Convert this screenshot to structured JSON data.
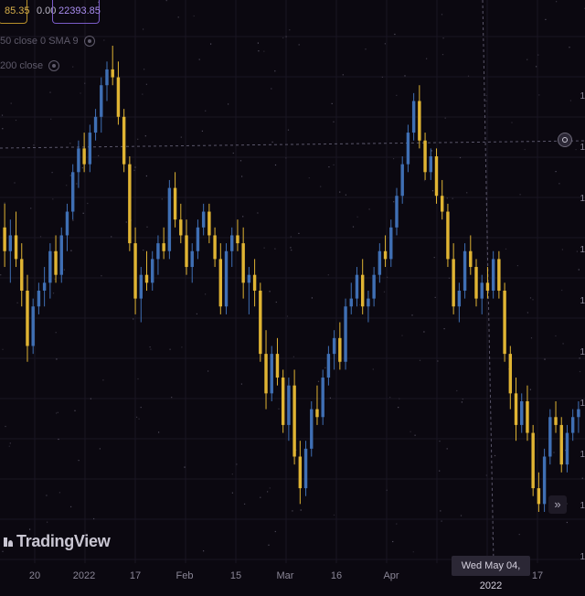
{
  "header": {
    "price_value": "85.35",
    "change_value": "0.00",
    "volume_value": "22393.85"
  },
  "indicators": [
    {
      "label": "50 close 0 SMA 9",
      "icon": "eye-icon"
    },
    {
      "label": "200 close",
      "icon": "eye-icon"
    }
  ],
  "branding": {
    "logo_text": "TradingView"
  },
  "x_axis": {
    "ticks": [
      {
        "label": "20"
      },
      {
        "label": "2022"
      },
      {
        "label": "17"
      },
      {
        "label": "Feb"
      },
      {
        "label": "15"
      },
      {
        "label": "Mar"
      },
      {
        "label": "16"
      },
      {
        "label": "Apr"
      },
      {
        "label": "17"
      }
    ],
    "cursor_date": "Wed May 04, 2022"
  },
  "y_axis": {
    "ticks": [
      "1",
      "1",
      "1",
      "1",
      "1",
      "1",
      "1",
      "1",
      "1",
      "1"
    ]
  },
  "controls": {
    "scroll_to_latest": "»",
    "target_icon": "target-icon"
  },
  "colors": {
    "up": "#3f6fb4",
    "down": "#e0b433",
    "background": "#0b0810",
    "grid": "#1a1622",
    "crosshair": "#5a566a"
  },
  "chart_data": {
    "type": "candlestick",
    "title": "",
    "candles": [
      {
        "o": 95,
        "h": 98,
        "l": 90,
        "c": 92
      },
      {
        "o": 92,
        "h": 96,
        "l": 88,
        "c": 94
      },
      {
        "o": 94,
        "h": 97,
        "l": 90,
        "c": 91
      },
      {
        "o": 91,
        "h": 93,
        "l": 85,
        "c": 87
      },
      {
        "o": 87,
        "h": 89,
        "l": 78,
        "c": 80
      },
      {
        "o": 80,
        "h": 86,
        "l": 79,
        "c": 85
      },
      {
        "o": 85,
        "h": 88,
        "l": 84,
        "c": 87
      },
      {
        "o": 87,
        "h": 90,
        "l": 85,
        "c": 88
      },
      {
        "o": 88,
        "h": 93,
        "l": 86,
        "c": 92
      },
      {
        "o": 92,
        "h": 94,
        "l": 88,
        "c": 89
      },
      {
        "o": 89,
        "h": 95,
        "l": 88,
        "c": 94
      },
      {
        "o": 94,
        "h": 98,
        "l": 92,
        "c": 97
      },
      {
        "o": 97,
        "h": 103,
        "l": 96,
        "c": 102
      },
      {
        "o": 102,
        "h": 106,
        "l": 100,
        "c": 105
      },
      {
        "o": 105,
        "h": 107,
        "l": 102,
        "c": 103
      },
      {
        "o": 103,
        "h": 108,
        "l": 102,
        "c": 107
      },
      {
        "o": 107,
        "h": 110,
        "l": 106,
        "c": 109
      },
      {
        "o": 109,
        "h": 114,
        "l": 107,
        "c": 113
      },
      {
        "o": 113,
        "h": 116,
        "l": 111,
        "c": 115
      },
      {
        "o": 115,
        "h": 118,
        "l": 113,
        "c": 114
      },
      {
        "o": 114,
        "h": 116,
        "l": 108,
        "c": 109
      },
      {
        "o": 109,
        "h": 110,
        "l": 102,
        "c": 103
      },
      {
        "o": 103,
        "h": 104,
        "l": 92,
        "c": 93
      },
      {
        "o": 93,
        "h": 95,
        "l": 84,
        "c": 86
      },
      {
        "o": 86,
        "h": 90,
        "l": 83,
        "c": 89
      },
      {
        "o": 89,
        "h": 92,
        "l": 87,
        "c": 88
      },
      {
        "o": 88,
        "h": 92,
        "l": 87,
        "c": 91
      },
      {
        "o": 91,
        "h": 94,
        "l": 89,
        "c": 93
      },
      {
        "o": 93,
        "h": 95,
        "l": 91,
        "c": 92
      },
      {
        "o": 92,
        "h": 101,
        "l": 91,
        "c": 100
      },
      {
        "o": 100,
        "h": 102,
        "l": 95,
        "c": 96
      },
      {
        "o": 96,
        "h": 98,
        "l": 93,
        "c": 94
      },
      {
        "o": 94,
        "h": 96,
        "l": 89,
        "c": 90
      },
      {
        "o": 90,
        "h": 93,
        "l": 88,
        "c": 92
      },
      {
        "o": 92,
        "h": 96,
        "l": 91,
        "c": 95
      },
      {
        "o": 95,
        "h": 98,
        "l": 94,
        "c": 97
      },
      {
        "o": 97,
        "h": 98,
        "l": 93,
        "c": 94
      },
      {
        "o": 94,
        "h": 95,
        "l": 90,
        "c": 91
      },
      {
        "o": 91,
        "h": 93,
        "l": 84,
        "c": 85
      },
      {
        "o": 85,
        "h": 93,
        "l": 84,
        "c": 92
      },
      {
        "o": 92,
        "h": 95,
        "l": 90,
        "c": 94
      },
      {
        "o": 94,
        "h": 96,
        "l": 92,
        "c": 93
      },
      {
        "o": 93,
        "h": 95,
        "l": 86,
        "c": 88
      },
      {
        "o": 88,
        "h": 90,
        "l": 84,
        "c": 89
      },
      {
        "o": 89,
        "h": 91,
        "l": 85,
        "c": 87
      },
      {
        "o": 87,
        "h": 88,
        "l": 78,
        "c": 79
      },
      {
        "o": 79,
        "h": 82,
        "l": 72,
        "c": 74
      },
      {
        "o": 74,
        "h": 80,
        "l": 73,
        "c": 79
      },
      {
        "o": 79,
        "h": 81,
        "l": 75,
        "c": 76
      },
      {
        "o": 76,
        "h": 77,
        "l": 69,
        "c": 70
      },
      {
        "o": 70,
        "h": 76,
        "l": 68,
        "c": 75
      },
      {
        "o": 75,
        "h": 77,
        "l": 65,
        "c": 66
      },
      {
        "o": 66,
        "h": 68,
        "l": 60,
        "c": 62
      },
      {
        "o": 62,
        "h": 68,
        "l": 61,
        "c": 67
      },
      {
        "o": 67,
        "h": 73,
        "l": 66,
        "c": 72
      },
      {
        "o": 72,
        "h": 75,
        "l": 70,
        "c": 71
      },
      {
        "o": 71,
        "h": 77,
        "l": 70,
        "c": 76
      },
      {
        "o": 76,
        "h": 80,
        "l": 75,
        "c": 79
      },
      {
        "o": 79,
        "h": 82,
        "l": 77,
        "c": 81
      },
      {
        "o": 81,
        "h": 83,
        "l": 77,
        "c": 78
      },
      {
        "o": 78,
        "h": 86,
        "l": 77,
        "c": 85
      },
      {
        "o": 85,
        "h": 88,
        "l": 84,
        "c": 86
      },
      {
        "o": 86,
        "h": 90,
        "l": 85,
        "c": 89
      },
      {
        "o": 89,
        "h": 91,
        "l": 84,
        "c": 85
      },
      {
        "o": 85,
        "h": 87,
        "l": 83,
        "c": 86
      },
      {
        "o": 86,
        "h": 90,
        "l": 85,
        "c": 89
      },
      {
        "o": 89,
        "h": 93,
        "l": 88,
        "c": 92
      },
      {
        "o": 92,
        "h": 94,
        "l": 90,
        "c": 91
      },
      {
        "o": 91,
        "h": 96,
        "l": 90,
        "c": 95
      },
      {
        "o": 95,
        "h": 100,
        "l": 94,
        "c": 99
      },
      {
        "o": 99,
        "h": 104,
        "l": 98,
        "c": 103
      },
      {
        "o": 103,
        "h": 108,
        "l": 102,
        "c": 107
      },
      {
        "o": 107,
        "h": 112,
        "l": 106,
        "c": 111
      },
      {
        "o": 111,
        "h": 113,
        "l": 105,
        "c": 106
      },
      {
        "o": 106,
        "h": 107,
        "l": 101,
        "c": 102
      },
      {
        "o": 102,
        "h": 105,
        "l": 101,
        "c": 104
      },
      {
        "o": 104,
        "h": 105,
        "l": 98,
        "c": 99
      },
      {
        "o": 99,
        "h": 101,
        "l": 96,
        "c": 97
      },
      {
        "o": 97,
        "h": 98,
        "l": 90,
        "c": 91
      },
      {
        "o": 91,
        "h": 93,
        "l": 84,
        "c": 85
      },
      {
        "o": 85,
        "h": 88,
        "l": 83,
        "c": 87
      },
      {
        "o": 87,
        "h": 93,
        "l": 86,
        "c": 92
      },
      {
        "o": 92,
        "h": 94,
        "l": 89,
        "c": 90
      },
      {
        "o": 90,
        "h": 91,
        "l": 85,
        "c": 86
      },
      {
        "o": 86,
        "h": 89,
        "l": 84,
        "c": 88
      },
      {
        "o": 88,
        "h": 90,
        "l": 86,
        "c": 87
      },
      {
        "o": 87,
        "h": 92,
        "l": 86,
        "c": 91
      },
      {
        "o": 91,
        "h": 92,
        "l": 86,
        "c": 87
      },
      {
        "o": 87,
        "h": 88,
        "l": 78,
        "c": 79
      },
      {
        "o": 79,
        "h": 80,
        "l": 72,
        "c": 74
      },
      {
        "o": 74,
        "h": 76,
        "l": 68,
        "c": 70
      },
      {
        "o": 70,
        "h": 74,
        "l": 69,
        "c": 73
      },
      {
        "o": 73,
        "h": 75,
        "l": 68,
        "c": 69
      },
      {
        "o": 69,
        "h": 70,
        "l": 61,
        "c": 62
      },
      {
        "o": 62,
        "h": 64,
        "l": 59,
        "c": 60
      },
      {
        "o": 60,
        "h": 67,
        "l": 59,
        "c": 66
      },
      {
        "o": 66,
        "h": 72,
        "l": 65,
        "c": 71
      },
      {
        "o": 71,
        "h": 73,
        "l": 69,
        "c": 70
      },
      {
        "o": 70,
        "h": 71,
        "l": 64,
        "c": 65
      },
      {
        "o": 65,
        "h": 70,
        "l": 64,
        "c": 69
      },
      {
        "o": 69,
        "h": 72,
        "l": 68,
        "c": 71
      },
      {
        "o": 71,
        "h": 73,
        "l": 69,
        "c": 72
      }
    ]
  }
}
